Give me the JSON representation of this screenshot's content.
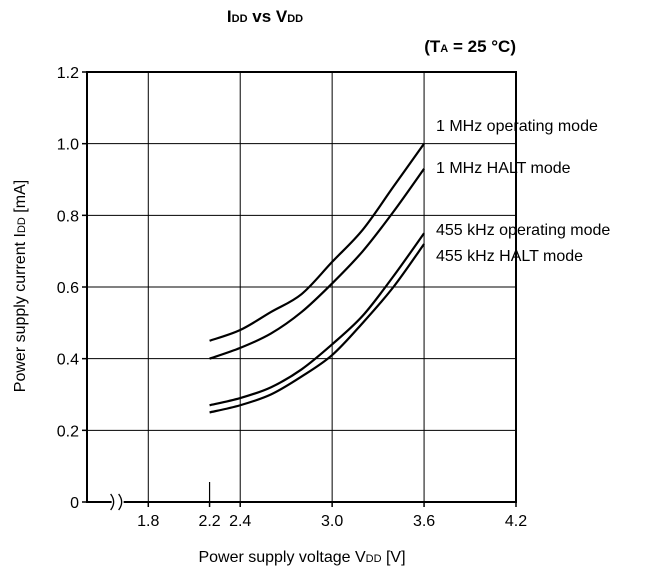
{
  "chart_data": {
    "type": "line",
    "title": {
      "main_a": "I",
      "main_sub_a": "DD",
      "main_mid": " vs V",
      "main_sub_b": "DD"
    },
    "subtitle": {
      "open": "(T",
      "sub": "A",
      "rest": " = 25 °C)"
    },
    "xlabel": {
      "text": "Power supply voltage V",
      "sub": "DD",
      "unit": " [V]"
    },
    "ylabel": {
      "text": "Power supply current I",
      "sub": "DD",
      "unit": " [mA]"
    },
    "xlim": [
      1.4,
      4.2
    ],
    "ylim": [
      0,
      1.2
    ],
    "x_ticks": [
      {
        "value": 1.8,
        "label": "1.8"
      },
      {
        "value": 2.2,
        "label": "2.2"
      },
      {
        "value": 2.4,
        "label": "2.4"
      },
      {
        "value": 3.0,
        "label": "3.0"
      },
      {
        "value": 3.6,
        "label": "3.6"
      },
      {
        "value": 4.2,
        "label": "4.2"
      }
    ],
    "x_gridlines": [
      1.8,
      2.4,
      3.0,
      3.6
    ],
    "y_ticks": [
      {
        "value": 0,
        "label": "0"
      },
      {
        "value": 0.2,
        "label": "0.2"
      },
      {
        "value": 0.4,
        "label": "0.4"
      },
      {
        "value": 0.6,
        "label": "0.6"
      },
      {
        "value": 0.8,
        "label": "0.8"
      },
      {
        "value": 1.0,
        "label": "1.0"
      },
      {
        "value": 1.2,
        "label": "1.2"
      }
    ],
    "axis_break_x": 1.6,
    "grid": true,
    "series": [
      {
        "name": "1 MHz operating mode",
        "x": [
          2.2,
          2.4,
          2.6,
          2.8,
          3.0,
          3.2,
          3.4,
          3.6
        ],
        "y": [
          0.45,
          0.48,
          0.53,
          0.58,
          0.67,
          0.76,
          0.88,
          1.0
        ]
      },
      {
        "name": "1 MHz HALT mode",
        "x": [
          2.2,
          2.4,
          2.6,
          2.8,
          3.0,
          3.2,
          3.4,
          3.6
        ],
        "y": [
          0.4,
          0.43,
          0.47,
          0.53,
          0.61,
          0.7,
          0.81,
          0.93
        ]
      },
      {
        "name": "455 kHz operating mode",
        "x": [
          2.2,
          2.4,
          2.6,
          2.8,
          3.0,
          3.2,
          3.4,
          3.6
        ],
        "y": [
          0.27,
          0.29,
          0.32,
          0.37,
          0.44,
          0.52,
          0.63,
          0.75
        ]
      },
      {
        "name": "455 kHz HALT mode",
        "x": [
          2.2,
          2.4,
          2.6,
          2.8,
          3.0,
          3.2,
          3.4,
          3.6
        ],
        "y": [
          0.25,
          0.27,
          0.3,
          0.35,
          0.41,
          0.5,
          0.6,
          0.72
        ]
      }
    ]
  }
}
